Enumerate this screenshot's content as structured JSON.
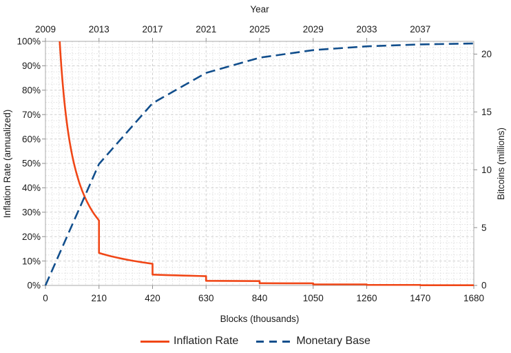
{
  "chart_data": {
    "type": "line",
    "title": "",
    "top_axis": {
      "label": "Year",
      "tick_labels": [
        "2009",
        "2013",
        "2017",
        "2021",
        "2025",
        "2029",
        "2033",
        "2037"
      ],
      "tick_positions": [
        0,
        210,
        420,
        630,
        840,
        1050,
        1260,
        1470
      ]
    },
    "x_axis": {
      "label": "Blocks (thousands)",
      "tick_labels": [
        "0",
        "210",
        "420",
        "630",
        "840",
        "1050",
        "1260",
        "1470",
        "1680"
      ],
      "tick_values": [
        0,
        210,
        420,
        630,
        840,
        1050,
        1260,
        1470,
        1680
      ],
      "lim": [
        0,
        1680
      ],
      "minor_divisions": 8
    },
    "y_left": {
      "label": "Inflation Rate (annualized)",
      "tick_labels": [
        "0%",
        "10%",
        "20%",
        "30%",
        "40%",
        "50%",
        "60%",
        "70%",
        "80%",
        "90%",
        "100%"
      ],
      "tick_values": [
        0,
        10,
        20,
        30,
        40,
        50,
        60,
        70,
        80,
        90,
        100
      ],
      "lim": [
        0,
        100
      ],
      "minor_divisions": 4
    },
    "y_right": {
      "label": "Bitcoins (millions)",
      "tick_labels": [
        "0",
        "5",
        "10",
        "15",
        "20"
      ],
      "tick_values": [
        0,
        5,
        10,
        15,
        20
      ],
      "lim": [
        0,
        21.1
      ]
    },
    "grid": true,
    "legend_position": "bottom-center",
    "series": [
      {
        "name": "Inflation Rate",
        "axis": "left",
        "line": "solid",
        "color": "#f04616",
        "points": [
          [
            55.9,
            100
          ],
          [
            58,
            96.4
          ],
          [
            60,
            93.2
          ],
          [
            63,
            88.7
          ],
          [
            66,
            84.7
          ],
          [
            70,
            79.9
          ],
          [
            74,
            75.5
          ],
          [
            78,
            71.7
          ],
          [
            82,
            68.2
          ],
          [
            86,
            65
          ],
          [
            90,
            62.1
          ],
          [
            95,
            58.8
          ],
          [
            100,
            55.9
          ],
          [
            105,
            53.2
          ],
          [
            110,
            50.8
          ],
          [
            115,
            48.6
          ],
          [
            120,
            46.6
          ],
          [
            126,
            44.4
          ],
          [
            132,
            42.3
          ],
          [
            138,
            40.5
          ],
          [
            144,
            38.8
          ],
          [
            150,
            37.3
          ],
          [
            157,
            35.6
          ],
          [
            164,
            34.1
          ],
          [
            171,
            32.7
          ],
          [
            178,
            31.4
          ],
          [
            185,
            30.2
          ],
          [
            192,
            29.1
          ],
          [
            199,
            28.1
          ],
          [
            205,
            27.3
          ],
          [
            210,
            26.6
          ],
          [
            210,
            13.31
          ],
          [
            225,
            12.85
          ],
          [
            240,
            12.42
          ],
          [
            255,
            12.02
          ],
          [
            270,
            11.65
          ],
          [
            285,
            11.29
          ],
          [
            300,
            10.96
          ],
          [
            315,
            10.65
          ],
          [
            330,
            10.35
          ],
          [
            345,
            10.07
          ],
          [
            360,
            9.81
          ],
          [
            375,
            9.56
          ],
          [
            390,
            9.32
          ],
          [
            405,
            9.09
          ],
          [
            420,
            8.87
          ],
          [
            420,
            4.44
          ],
          [
            450,
            4.33
          ],
          [
            480,
            4.23
          ],
          [
            510,
            4.14
          ],
          [
            540,
            4.05
          ],
          [
            570,
            3.96
          ],
          [
            600,
            3.88
          ],
          [
            630,
            3.8
          ],
          [
            630,
            1.9
          ],
          [
            700,
            1.86
          ],
          [
            770,
            1.82
          ],
          [
            840,
            1.77
          ],
          [
            840,
            0.89
          ],
          [
            945,
            0.87
          ],
          [
            1050,
            0.86
          ],
          [
            1050,
            0.43
          ],
          [
            1260,
            0.42
          ],
          [
            1260,
            0.21
          ],
          [
            1470,
            0.21
          ],
          [
            1470,
            0.1
          ],
          [
            1680,
            0.1
          ]
        ]
      },
      {
        "name": "Monetary Base",
        "axis": "right",
        "line": "dashed",
        "color": "#114e8c",
        "points": [
          [
            0,
            0
          ],
          [
            210,
            10.5
          ],
          [
            420,
            15.75
          ],
          [
            630,
            18.375
          ],
          [
            840,
            19.688
          ],
          [
            1050,
            20.344
          ],
          [
            1260,
            20.672
          ],
          [
            1470,
            20.836
          ],
          [
            1680,
            20.918
          ]
        ]
      }
    ]
  },
  "colors": {
    "grid_minor": "#dedede",
    "grid_major": "#cfcfcf",
    "axis_border": "#a8a8a8",
    "tick_mark": "#8c8c8c",
    "text": "#1a1a1a"
  }
}
